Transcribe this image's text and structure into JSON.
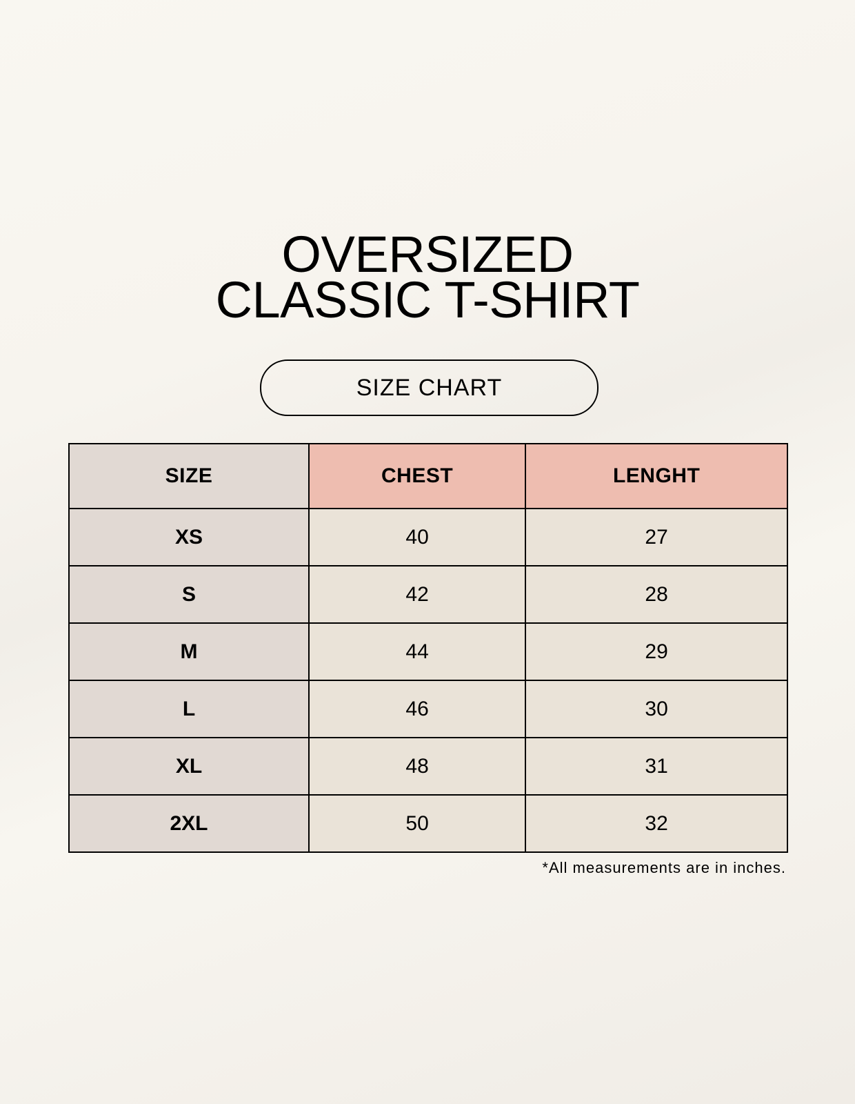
{
  "title": {
    "line1": "OVERSIZED",
    "line2": "CLASSIC T-SHIRT"
  },
  "badge": "SIZE CHART",
  "colors": {
    "size_column": "#e1d9d3",
    "header_accent": "#eebdb0",
    "cell": "#eae3d8"
  },
  "table": {
    "headers": [
      "SIZE",
      "CHEST",
      "LENGHT"
    ],
    "rows": [
      [
        "XS",
        "40",
        "27"
      ],
      [
        "S",
        "42",
        "28"
      ],
      [
        "M",
        "44",
        "29"
      ],
      [
        "L",
        "46",
        "30"
      ],
      [
        "XL",
        "48",
        "31"
      ],
      [
        "2XL",
        "50",
        "32"
      ]
    ]
  },
  "footnote": "*All measurements are in inches."
}
